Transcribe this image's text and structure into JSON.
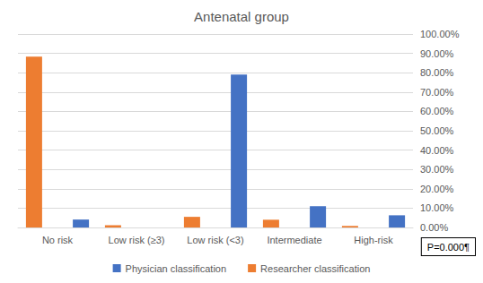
{
  "chart_data": {
    "type": "bar",
    "title": "Antenatal group",
    "categories": [
      "No risk",
      "Low risk (≥3)",
      "Low risk (<3)",
      "Intermediate",
      "High-risk"
    ],
    "series": [
      {
        "name": "Physician classification",
        "color": "#4472c4",
        "values": [
          4.1,
          0,
          79.0,
          11.0,
          6.3
        ]
      },
      {
        "name": "Researcher classification",
        "color": "#ed7d31",
        "values": [
          88.3,
          1.2,
          5.5,
          4.0,
          0.8
        ]
      }
    ],
    "ylim": [
      0,
      100
    ],
    "yticks": [
      {
        "value": 0,
        "label": "0.00%"
      },
      {
        "value": 10,
        "label": "10.00%"
      },
      {
        "value": 20,
        "label": "20.00%"
      },
      {
        "value": 30,
        "label": "30.00%"
      },
      {
        "value": 40,
        "label": "40.00%"
      },
      {
        "value": 50,
        "label": "50.00%"
      },
      {
        "value": 60,
        "label": "60.00%"
      },
      {
        "value": 70,
        "label": "70.00%"
      },
      {
        "value": 80,
        "label": "80.00%"
      },
      {
        "value": 90,
        "label": "90.00%"
      },
      {
        "value": 100,
        "label": "100.00%"
      }
    ],
    "grid": true,
    "legend": "bottom",
    "annotation": "P=0.000¶"
  }
}
